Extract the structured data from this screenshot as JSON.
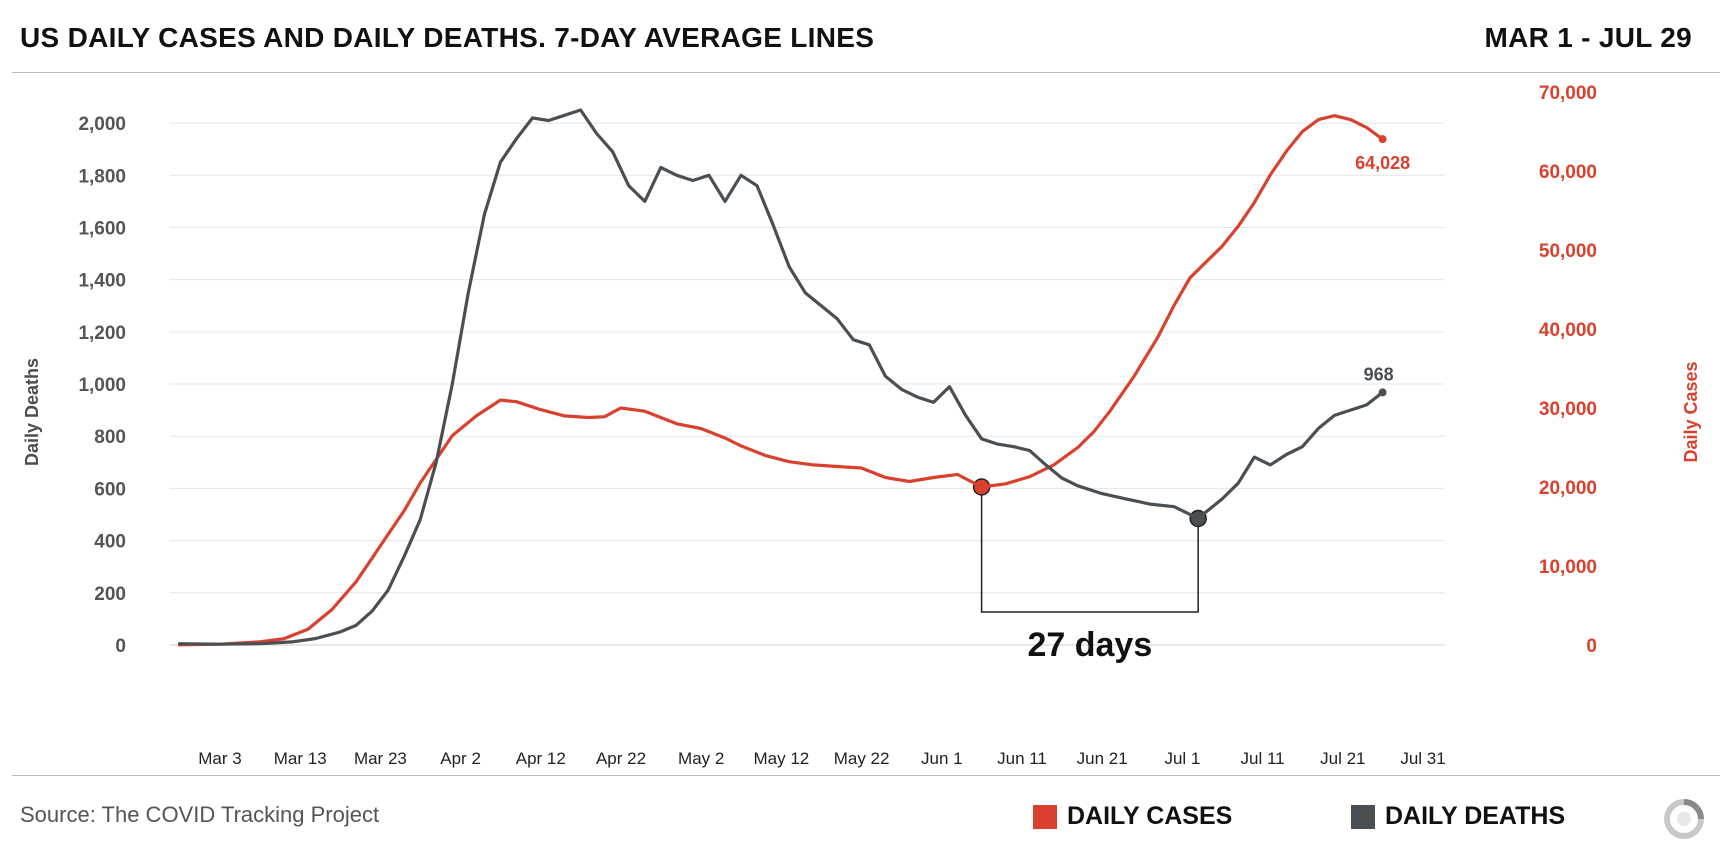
{
  "header": {
    "title": "US DAILY CASES AND DAILY DEATHS. 7-DAY AVERAGE LINES",
    "date_range": "MAR 1 - JUL 29"
  },
  "footer": {
    "source": "Source: The COVID Tracking Project",
    "logo_icon": "covid-tracking-project-logo-icon"
  },
  "chart_data": {
    "type": "line",
    "xlabel": "",
    "x_tick_labels": [
      "Mar 3",
      "Mar 13",
      "Mar 23",
      "Apr 2",
      "Apr 12",
      "Apr 22",
      "May 2",
      "May 12",
      "May 22",
      "Jun 1",
      "Jun 11",
      "Jun 21",
      "Jul 1",
      "Jul 11",
      "Jul 21",
      "Jul 31"
    ],
    "left_axis": {
      "label": "Daily Deaths",
      "ylim": [
        0,
        2100
      ],
      "ticks": [
        0,
        200,
        400,
        600,
        800,
        1000,
        1200,
        1400,
        1600,
        1800,
        2000
      ],
      "tick_labels": [
        "0",
        "200",
        "400",
        "600",
        "800",
        "1,000",
        "1,200",
        "1,400",
        "1,600",
        "1,800",
        "2,000"
      ]
    },
    "right_axis": {
      "label": "Daily Cases",
      "ylim": [
        0,
        70000
      ],
      "ticks": [
        0,
        10000,
        20000,
        30000,
        40000,
        50000,
        60000,
        70000
      ],
      "tick_labels": [
        "0",
        "10,000",
        "20,000",
        "30,000",
        "40,000",
        "50,000",
        "60,000",
        "70,000"
      ]
    },
    "grid": true,
    "legend_position": "bottom",
    "series": [
      {
        "name": "DAILY CASES",
        "axis": "right",
        "color": "#d9412e",
        "end_label": "64,028",
        "points": [
          [
            "2020-03-01",
            30
          ],
          [
            "2020-03-06",
            100
          ],
          [
            "2020-03-11",
            400
          ],
          [
            "2020-03-14",
            800
          ],
          [
            "2020-03-17",
            2000
          ],
          [
            "2020-03-20",
            4500
          ],
          [
            "2020-03-23",
            8000
          ],
          [
            "2020-03-25",
            11000
          ],
          [
            "2020-03-27",
            14000
          ],
          [
            "2020-03-29",
            17000
          ],
          [
            "2020-03-31",
            20500
          ],
          [
            "2020-04-02",
            23500
          ],
          [
            "2020-04-04",
            26500
          ],
          [
            "2020-04-07",
            29000
          ],
          [
            "2020-04-10",
            31000
          ],
          [
            "2020-04-12",
            30800
          ],
          [
            "2020-04-15",
            29800
          ],
          [
            "2020-04-18",
            29000
          ],
          [
            "2020-04-21",
            28800
          ],
          [
            "2020-04-23",
            28900
          ],
          [
            "2020-04-25",
            30000
          ],
          [
            "2020-04-28",
            29600
          ],
          [
            "2020-04-30",
            28800
          ],
          [
            "2020-05-02",
            28000
          ],
          [
            "2020-05-05",
            27400
          ],
          [
            "2020-05-08",
            26200
          ],
          [
            "2020-05-10",
            25200
          ],
          [
            "2020-05-13",
            24000
          ],
          [
            "2020-05-16",
            23200
          ],
          [
            "2020-05-19",
            22800
          ],
          [
            "2020-05-22",
            22600
          ],
          [
            "2020-05-25",
            22400
          ],
          [
            "2020-05-28",
            21200
          ],
          [
            "2020-05-31",
            20700
          ],
          [
            "2020-06-03",
            21200
          ],
          [
            "2020-06-06",
            21600
          ],
          [
            "2020-06-09",
            20000
          ],
          [
            "2020-06-12",
            20400
          ],
          [
            "2020-06-15",
            21300
          ],
          [
            "2020-06-18",
            22800
          ],
          [
            "2020-06-21",
            25000
          ],
          [
            "2020-06-23",
            27000
          ],
          [
            "2020-06-25",
            29600
          ],
          [
            "2020-06-28",
            34000
          ],
          [
            "2020-07-01",
            39000
          ],
          [
            "2020-07-03",
            43000
          ],
          [
            "2020-07-05",
            46500
          ],
          [
            "2020-07-07",
            48500
          ],
          [
            "2020-07-09",
            50500
          ],
          [
            "2020-07-11",
            53000
          ],
          [
            "2020-07-13",
            56000
          ],
          [
            "2020-07-15",
            59500
          ],
          [
            "2020-07-17",
            62500
          ],
          [
            "2020-07-19",
            65000
          ],
          [
            "2020-07-21",
            66500
          ],
          [
            "2020-07-23",
            67000
          ],
          [
            "2020-07-25",
            66500
          ],
          [
            "2020-07-27",
            65500
          ],
          [
            "2020-07-29",
            64028
          ]
        ]
      },
      {
        "name": "DAILY DEATHS",
        "axis": "left",
        "color": "#4a4f53",
        "end_label": "968",
        "points": [
          [
            "2020-03-01",
            5
          ],
          [
            "2020-03-06",
            3
          ],
          [
            "2020-03-11",
            5
          ],
          [
            "2020-03-15",
            12
          ],
          [
            "2020-03-18",
            25
          ],
          [
            "2020-03-21",
            50
          ],
          [
            "2020-03-23",
            75
          ],
          [
            "2020-03-25",
            130
          ],
          [
            "2020-03-27",
            210
          ],
          [
            "2020-03-29",
            340
          ],
          [
            "2020-03-31",
            480
          ],
          [
            "2020-04-02",
            700
          ],
          [
            "2020-04-04",
            1000
          ],
          [
            "2020-04-06",
            1350
          ],
          [
            "2020-04-08",
            1650
          ],
          [
            "2020-04-10",
            1850
          ],
          [
            "2020-04-12",
            1940
          ],
          [
            "2020-04-14",
            2020
          ],
          [
            "2020-04-16",
            2010
          ],
          [
            "2020-04-18",
            2030
          ],
          [
            "2020-04-20",
            2050
          ],
          [
            "2020-04-22",
            1960
          ],
          [
            "2020-04-24",
            1890
          ],
          [
            "2020-04-26",
            1760
          ],
          [
            "2020-04-28",
            1700
          ],
          [
            "2020-04-30",
            1830
          ],
          [
            "2020-05-02",
            1800
          ],
          [
            "2020-05-04",
            1780
          ],
          [
            "2020-05-06",
            1800
          ],
          [
            "2020-05-08",
            1700
          ],
          [
            "2020-05-10",
            1800
          ],
          [
            "2020-05-12",
            1760
          ],
          [
            "2020-05-14",
            1610
          ],
          [
            "2020-05-16",
            1450
          ],
          [
            "2020-05-18",
            1350
          ],
          [
            "2020-05-20",
            1300
          ],
          [
            "2020-05-22",
            1250
          ],
          [
            "2020-05-24",
            1170
          ],
          [
            "2020-05-26",
            1150
          ],
          [
            "2020-05-28",
            1030
          ],
          [
            "2020-05-30",
            980
          ],
          [
            "2020-06-01",
            950
          ],
          [
            "2020-06-03",
            930
          ],
          [
            "2020-06-05",
            990
          ],
          [
            "2020-06-07",
            880
          ],
          [
            "2020-06-09",
            790
          ],
          [
            "2020-06-11",
            770
          ],
          [
            "2020-06-13",
            760
          ],
          [
            "2020-06-15",
            745
          ],
          [
            "2020-06-17",
            690
          ],
          [
            "2020-06-19",
            640
          ],
          [
            "2020-06-21",
            610
          ],
          [
            "2020-06-24",
            580
          ],
          [
            "2020-06-27",
            560
          ],
          [
            "2020-06-30",
            540
          ],
          [
            "2020-07-03",
            530
          ],
          [
            "2020-07-06",
            485
          ],
          [
            "2020-07-09",
            560
          ],
          [
            "2020-07-11",
            620
          ],
          [
            "2020-07-13",
            720
          ],
          [
            "2020-07-15",
            690
          ],
          [
            "2020-07-17",
            730
          ],
          [
            "2020-07-19",
            760
          ],
          [
            "2020-07-21",
            830
          ],
          [
            "2020-07-23",
            880
          ],
          [
            "2020-07-25",
            900
          ],
          [
            "2020-07-27",
            920
          ],
          [
            "2020-07-29",
            968
          ]
        ]
      }
    ],
    "annotation": {
      "text": "27 days",
      "from_date": "2020-06-09",
      "from_cases": 20000,
      "to_date": "2020-07-06",
      "to_deaths": 485
    }
  }
}
